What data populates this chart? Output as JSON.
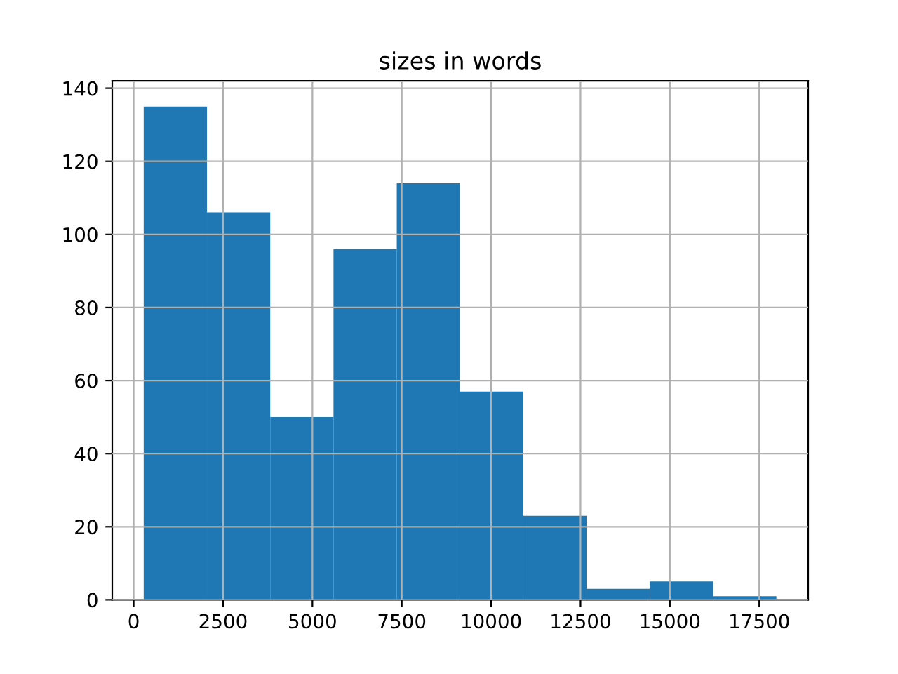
{
  "chart_data": {
    "type": "histogram",
    "title": "sizes in words",
    "bins": [
      280,
      2050,
      3820,
      5590,
      7360,
      9130,
      10900,
      12670,
      14440,
      16210,
      17980
    ],
    "values": [
      135,
      106,
      50,
      96,
      114,
      57,
      23,
      3,
      5,
      1
    ],
    "color": "#1f77b4",
    "xlim": [
      -600,
      18870
    ],
    "xticks": [
      0,
      2500,
      5000,
      7500,
      10000,
      12500,
      15000,
      17500
    ],
    "ylim": [
      0,
      142
    ],
    "yticks": [
      0,
      20,
      40,
      60,
      80,
      100,
      120,
      140
    ],
    "grid": true
  }
}
